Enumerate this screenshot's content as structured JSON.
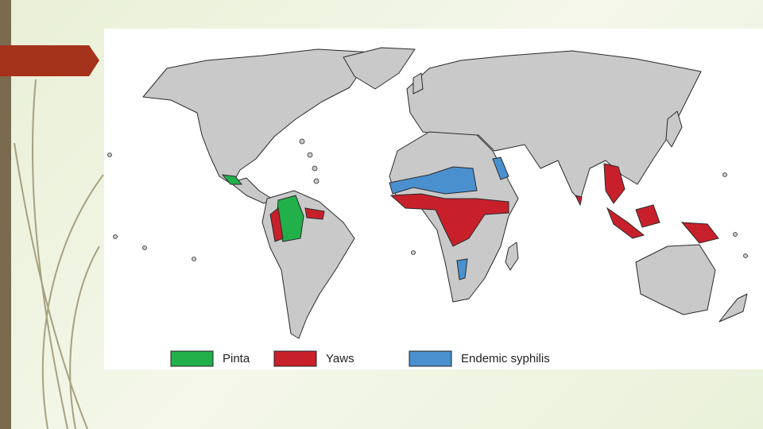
{
  "legend": [
    {
      "label": "Pinta",
      "color": "#22b04b"
    },
    {
      "label": "Yaws",
      "color": "#c8202a"
    },
    {
      "label": "Endemic syphilis",
      "color": "#4a90cf"
    }
  ]
}
